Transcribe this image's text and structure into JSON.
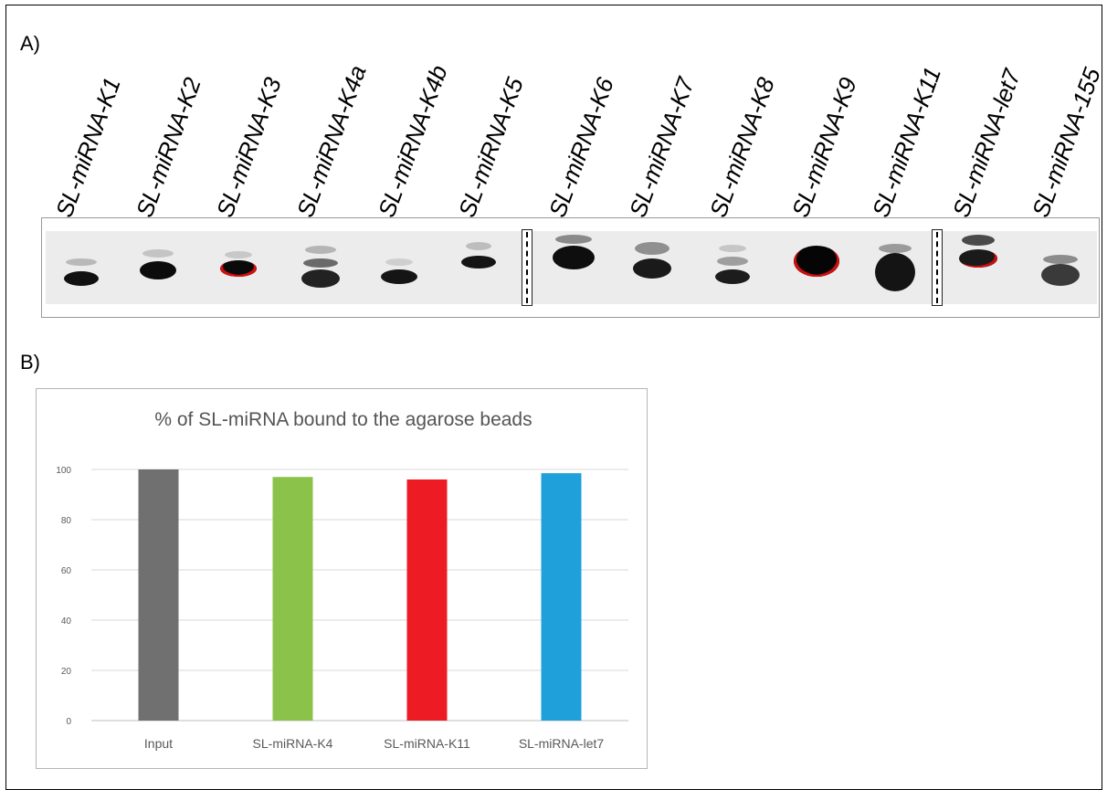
{
  "panels": {
    "a_label": "A)",
    "b_label": "B)"
  },
  "gel": {
    "lanes": [
      "SL-miRNA-K1",
      "SL-miRNA-K2",
      "SL-miRNA-K3",
      "SL-miRNA-K4a",
      "SL-miRNA-K4b",
      "SL-miRNA-K5",
      "SL-miRNA-K6",
      "SL-miRNA-K7",
      "SL-miRNA-K8",
      "SL-miRNA-K9",
      "SL-miRNA-K11",
      "SL-miRNA-let7",
      "SL-miRNA-155"
    ]
  },
  "chart_data": {
    "type": "bar",
    "title": "% of SL-miRNA bound to the agarose beads",
    "categories": [
      "Input",
      "SL-miRNA-K4",
      "SL-miRNA-K11",
      "SL-miRNA-let7"
    ],
    "values": [
      100,
      97,
      96,
      98.5
    ],
    "colors": [
      "#707070",
      "#8bc34a",
      "#ed1c24",
      "#1fa0db"
    ],
    "yticks": [
      0,
      20,
      40,
      60,
      80,
      100
    ],
    "ylim": [
      0,
      100
    ],
    "grid": true
  }
}
